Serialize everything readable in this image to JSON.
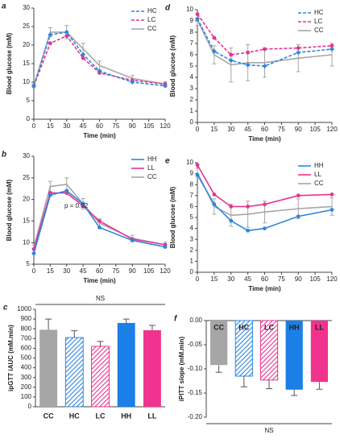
{
  "chart_data": [
    {
      "type": "line",
      "label": "a",
      "xlabel": "Time (min)",
      "ylabel": "Blood glucose (mM)",
      "x": [
        0,
        15,
        30,
        45,
        60,
        90,
        120
      ],
      "xlim": [
        0,
        120
      ],
      "xticks": [
        0,
        15,
        30,
        45,
        60,
        75,
        90,
        105,
        120
      ],
      "ylim": [
        0,
        30
      ],
      "yticks": [
        0,
        5,
        10,
        15,
        20,
        25,
        30
      ],
      "series": [
        {
          "name": "HC",
          "color": "#2e86de",
          "dash": true,
          "marker": "diamond",
          "values": [
            9,
            22.8,
            23.5,
            17.5,
            13,
            10,
            9
          ]
        },
        {
          "name": "LC",
          "color": "#e6358f",
          "dash": true,
          "marker": "circle",
          "values": [
            9,
            20.5,
            22.5,
            16.5,
            12.5,
            10.5,
            9.5
          ]
        },
        {
          "name": "CC",
          "color": "#a6a6a6",
          "dash": false,
          "marker": "none",
          "values": [
            9,
            23.5,
            23.5,
            19,
            14.5,
            11,
            9.5
          ],
          "errors": [
            0.5,
            1.2,
            1.8,
            1.5,
            1.2,
            0.8,
            0.6
          ]
        }
      ]
    },
    {
      "type": "line",
      "label": "d",
      "xlabel": "Time (min)",
      "ylabel": "Blood glucose (mM)",
      "x": [
        0,
        15,
        30,
        45,
        60,
        90,
        120
      ],
      "xlim": [
        0,
        120
      ],
      "xticks": [
        0,
        15,
        30,
        45,
        60,
        75,
        90,
        105,
        120
      ],
      "ylim": [
        0,
        10
      ],
      "yticks": [
        0,
        1,
        2,
        3,
        4,
        5,
        6,
        7,
        8,
        9,
        10
      ],
      "series": [
        {
          "name": "HC",
          "color": "#2e86de",
          "dash": true,
          "marker": "diamond",
          "values": [
            9.2,
            6.3,
            5.5,
            5.1,
            5.0,
            6.2,
            6.5
          ]
        },
        {
          "name": "LC",
          "color": "#e6358f",
          "dash": true,
          "marker": "circle",
          "values": [
            9.6,
            7.5,
            6.0,
            6.2,
            6.5,
            6.6,
            6.8
          ]
        },
        {
          "name": "CC",
          "color": "#a6a6a6",
          "dash": false,
          "marker": "none",
          "values": [
            9.1,
            6.0,
            5.1,
            5.3,
            5.3,
            5.7,
            6.0
          ],
          "errors": [
            0.5,
            0.8,
            1.5,
            1.6,
            1.3,
            1.2,
            1.0
          ]
        }
      ]
    },
    {
      "type": "line",
      "label": "b",
      "xlabel": "Time (min)",
      "ylabel": "Blood glucose (mM)",
      "annotation": "p = 0.02",
      "x": [
        0,
        15,
        30,
        45,
        60,
        90,
        120
      ],
      "xlim": [
        0,
        120
      ],
      "xticks": [
        0,
        15,
        30,
        45,
        60,
        75,
        90,
        105,
        120
      ],
      "ylim": [
        5,
        30
      ],
      "yticks": [
        5,
        10,
        15,
        20,
        25,
        30
      ],
      "series": [
        {
          "name": "HH",
          "color": "#2e86de",
          "dash": false,
          "marker": "circle",
          "values": [
            7.5,
            21,
            22,
            19,
            13.5,
            10.5,
            9
          ]
        },
        {
          "name": "LL",
          "color": "#e6358f",
          "dash": false,
          "marker": "circle",
          "values": [
            8.5,
            21.5,
            21.5,
            18.5,
            15,
            10.8,
            9.5
          ]
        },
        {
          "name": "CC",
          "color": "#a6a6a6",
          "dash": false,
          "marker": "none",
          "values": [
            9,
            23,
            23.5,
            19,
            14.5,
            11,
            9.5
          ],
          "errors": [
            0.5,
            1.2,
            1.5,
            1.2,
            1.0,
            0.7,
            0.6
          ]
        }
      ]
    },
    {
      "type": "line",
      "label": "e",
      "xlabel": "Time (min)",
      "ylabel": "Blood glucose (mM)",
      "x": [
        0,
        15,
        30,
        45,
        60,
        90,
        120
      ],
      "xlim": [
        0,
        120
      ],
      "xticks": [
        0,
        15,
        30,
        45,
        60,
        75,
        90,
        105,
        120
      ],
      "ylim": [
        0,
        10
      ],
      "yticks": [
        0,
        1,
        2,
        3,
        4,
        5,
        6,
        7,
        8,
        9,
        10
      ],
      "series": [
        {
          "name": "HH",
          "color": "#2e86de",
          "dash": false,
          "marker": "circle",
          "values": [
            8.9,
            6.2,
            4.7,
            3.8,
            4.0,
            5.1,
            5.7
          ]
        },
        {
          "name": "LL",
          "color": "#e6358f",
          "dash": false,
          "marker": "circle",
          "values": [
            9.8,
            7.1,
            6.0,
            6.0,
            6.2,
            7.0,
            7.1
          ]
        },
        {
          "name": "CC",
          "color": "#a6a6a6",
          "dash": false,
          "marker": "none",
          "values": [
            9.1,
            6.0,
            5.2,
            5.3,
            5.5,
            5.8,
            6.0
          ],
          "errors": [
            0.4,
            0.7,
            1.0,
            1.2,
            1.0,
            0.9,
            0.8
          ]
        }
      ]
    },
    {
      "type": "bar",
      "label": "c",
      "ylabel": "ipGTT iAUC (mM.min)",
      "annotation": "NS",
      "category_labels": "below",
      "categories": [
        "CC",
        "HC",
        "LC",
        "HH",
        "LL"
      ],
      "values": [
        790,
        710,
        620,
        860,
        785
      ],
      "errors": [
        110,
        70,
        50,
        40,
        50
      ],
      "colors": [
        "#a6a6a6",
        "#2e86de",
        "#e6358f",
        "#1a7fe6",
        "#f0338f"
      ],
      "hatch": [
        false,
        true,
        true,
        false,
        false
      ],
      "ylim": [
        0,
        1000
      ],
      "yticks": [
        0,
        100,
        200,
        300,
        400,
        500,
        600,
        700,
        800,
        900,
        1000
      ]
    },
    {
      "type": "bar",
      "label": "f",
      "ylabel": "iPITT slope (mM.min)",
      "annotation": "NS",
      "category_labels": "inside",
      "categories": [
        "CC",
        "HC",
        "LC",
        "HH",
        "LL"
      ],
      "values": [
        -0.092,
        -0.115,
        -0.123,
        -0.143,
        -0.127
      ],
      "errors": [
        0.015,
        0.022,
        0.018,
        0.012,
        0.015
      ],
      "colors": [
        "#a6a6a6",
        "#2e86de",
        "#e6358f",
        "#1a7fe6",
        "#f0338f"
      ],
      "hatch": [
        false,
        true,
        true,
        false,
        false
      ],
      "ylim": [
        -0.2,
        0
      ],
      "yticks": [
        {
          "value": 0,
          "label": "0.00"
        },
        {
          "value": -0.05,
          "label": "-0.05"
        },
        {
          "value": -0.1,
          "label": "-0.10"
        },
        {
          "value": -0.15,
          "label": "-0.15"
        },
        {
          "value": -0.2,
          "label": "-0.20"
        }
      ]
    }
  ]
}
